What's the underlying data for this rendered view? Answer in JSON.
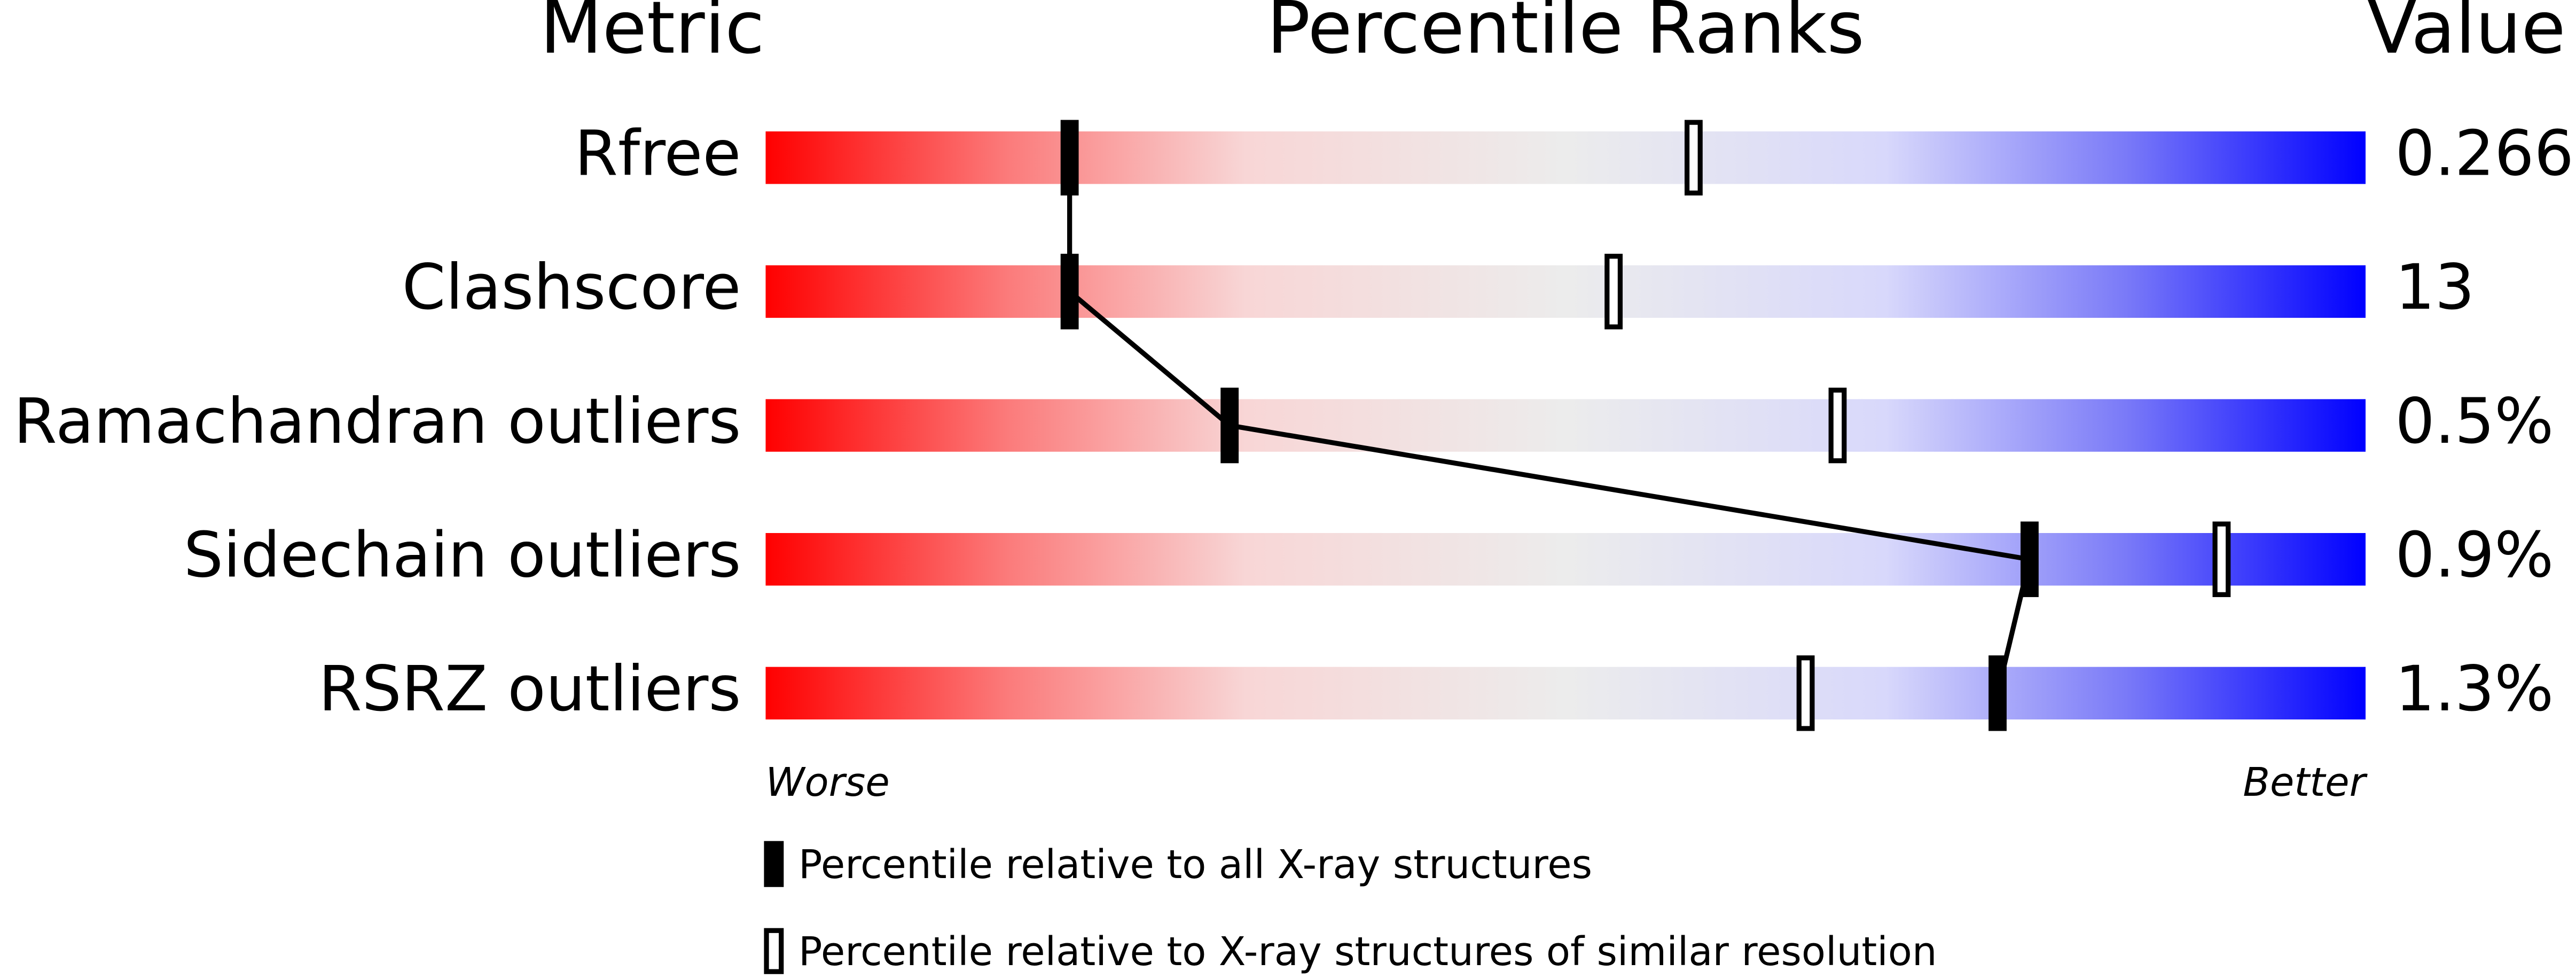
{
  "chart_data": {
    "type": "percentile",
    "headers": {
      "metric": "Metric",
      "ranks": "Percentile Ranks",
      "value": "Value"
    },
    "categories": [
      "Rfree",
      "Clashscore",
      "Ramachandran outliers",
      "Sidechain outliers",
      "RSRZ outliers"
    ],
    "metric_values": [
      "0.266",
      "13",
      "0.5%",
      "0.9%",
      "1.3%"
    ],
    "series": [
      {
        "name": "Percentile relative to all X-ray structures",
        "color": "#000000",
        "values": [
          19,
          19,
          29,
          79,
          77
        ]
      },
      {
        "name": "Percentile relative to X-ray structures of similar resolution",
        "color": "#000000",
        "values": [
          58,
          53,
          67,
          91,
          65
        ]
      }
    ],
    "xlim": [
      0,
      100
    ],
    "axis_labels": {
      "low": "Worse",
      "high": "Better"
    }
  }
}
